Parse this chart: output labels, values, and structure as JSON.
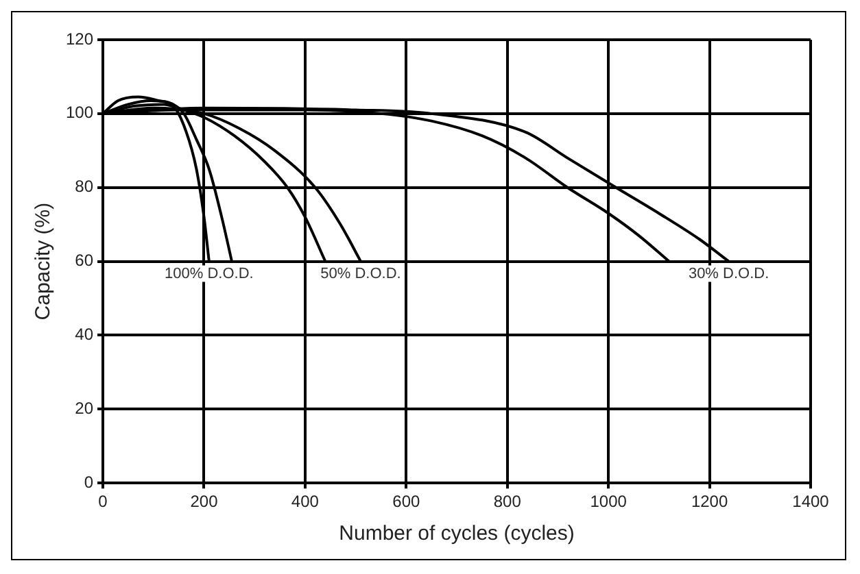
{
  "chart_data": {
    "type": "line",
    "xlabel": "Number of cycles (cycles)",
    "ylabel": "Capacity (%)",
    "xlim": [
      0,
      1400
    ],
    "xticks": [
      0,
      200,
      400,
      600,
      800,
      1000,
      1200,
      1400
    ],
    "ylim": [
      0,
      120
    ],
    "yticks": [
      0,
      20,
      40,
      60,
      80,
      100,
      120
    ],
    "grid": true,
    "legend": false,
    "marker": "none",
    "line_style": "solid",
    "series": [
      {
        "color": "#000000",
        "x": [
          0,
          30,
          70,
          110,
          140,
          165,
          185,
          200,
          210
        ],
        "values": [
          100,
          103.5,
          104.5,
          103.5,
          102,
          95,
          85,
          72,
          60
        ]
      },
      {
        "color": "#000000",
        "x": [
          0,
          50,
          95,
          130,
          160,
          185,
          210,
          235,
          255
        ],
        "values": [
          100,
          102.5,
          103.5,
          103,
          100,
          93,
          85,
          72,
          60
        ]
      },
      {
        "color": "#000000",
        "x": [
          0,
          60,
          120,
          160,
          200,
          260,
          320,
          365,
          400,
          440
        ],
        "values": [
          100,
          102,
          102.5,
          101,
          99,
          94,
          87,
          80,
          72,
          60
        ]
      },
      {
        "color": "#000000",
        "x": [
          0,
          100,
          200,
          270,
          340,
          420,
          470,
          510
        ],
        "values": [
          100,
          101.5,
          100,
          96,
          90,
          80,
          70,
          60
        ]
      },
      {
        "color": "#000000",
        "x": [
          0,
          150,
          400,
          550,
          650,
          750,
          836,
          919,
          1000,
          1060,
          1120
        ],
        "values": [
          100,
          101,
          101,
          100,
          98,
          94,
          88,
          80,
          73,
          67,
          60
        ]
      },
      {
        "color": "#000000",
        "x": [
          0,
          200,
          500,
          650,
          836,
          919,
          1015,
          1100,
          1180,
          1238
        ],
        "values": [
          100,
          101.5,
          101,
          100,
          95,
          88,
          80,
          73,
          66,
          60
        ]
      }
    ],
    "annotations": [
      {
        "text": "100% D.O.D.",
        "x": 210,
        "y": 60
      },
      {
        "text": "50% D.O.D.",
        "x": 510,
        "y": 60
      },
      {
        "text": "30% D.O.D.",
        "x": 1238,
        "y": 60
      }
    ]
  }
}
